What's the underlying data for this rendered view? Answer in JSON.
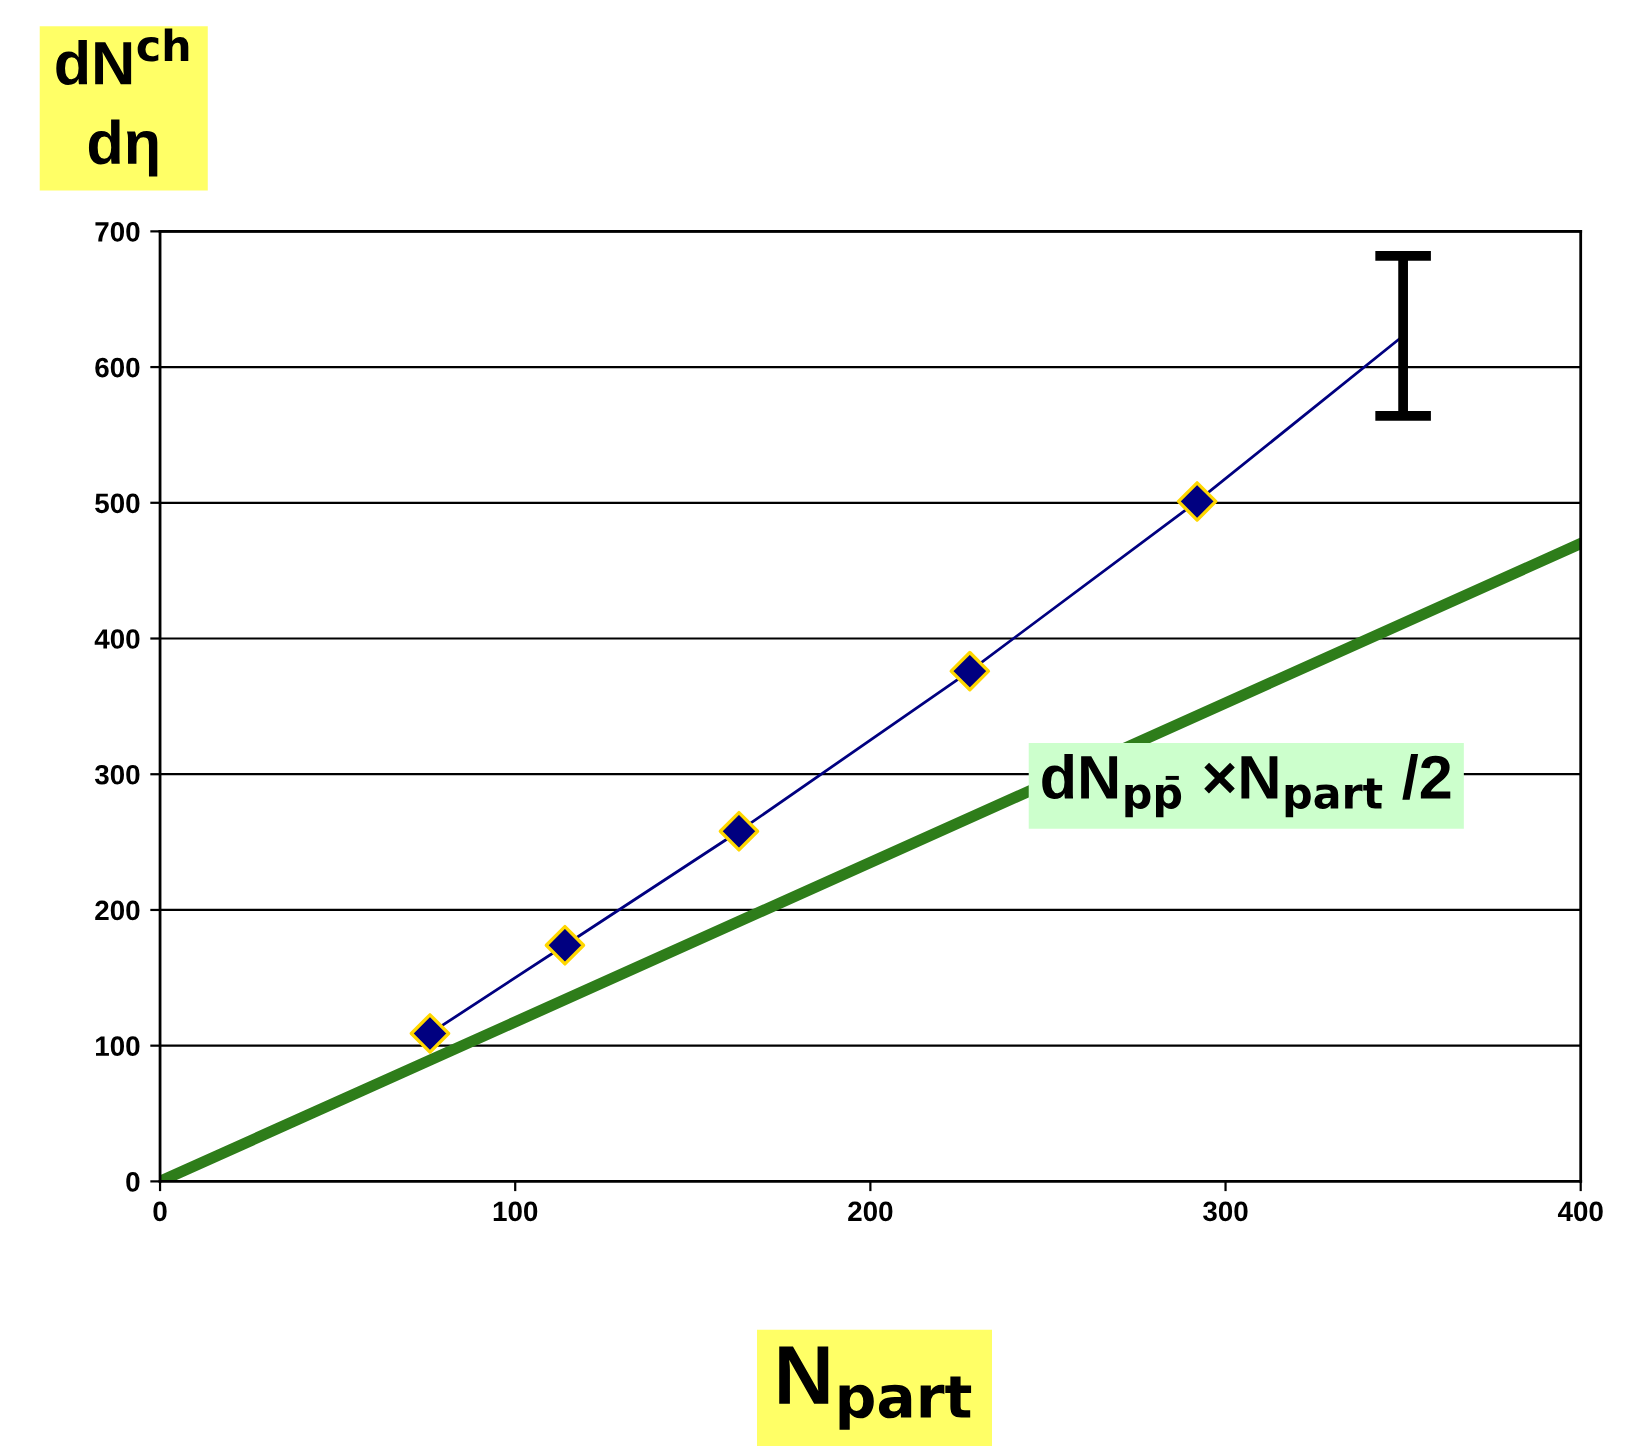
{
  "chart_data": {
    "type": "line",
    "xlabel": "N$_{part}$",
    "ylabel": "dN$^{ch}$\ndη",
    "xlim": [
      0,
      400
    ],
    "xticks": [
      0,
      100,
      200,
      300,
      400
    ],
    "ylim": [
      0,
      700
    ],
    "yticks": [
      0,
      100,
      200,
      300,
      400,
      500,
      600,
      700
    ],
    "grid": "y",
    "series": [
      {
        "color": "#000080",
        "x": [
          76,
          114,
          163,
          228,
          292,
          350
        ],
        "values": [
          109,
          174,
          258,
          376,
          501,
          623
        ],
        "errors": [
          null,
          null,
          null,
          null,
          null,
          59
        ],
        "marker": "none"
      },
      {
        "type": "scatter",
        "color": "#000080",
        "x": [
          76,
          114,
          163,
          228,
          292
        ],
        "values": [
          109,
          174,
          258,
          376,
          501
        ],
        "marker": "diamond"
      },
      {
        "name": "dN$_{pp̄}$ ×N$_{part}$ /2",
        "color": "#2e7d1a",
        "x": [
          0,
          400
        ],
        "values": [
          0,
          470
        ],
        "marker": "none"
      }
    ]
  }
}
